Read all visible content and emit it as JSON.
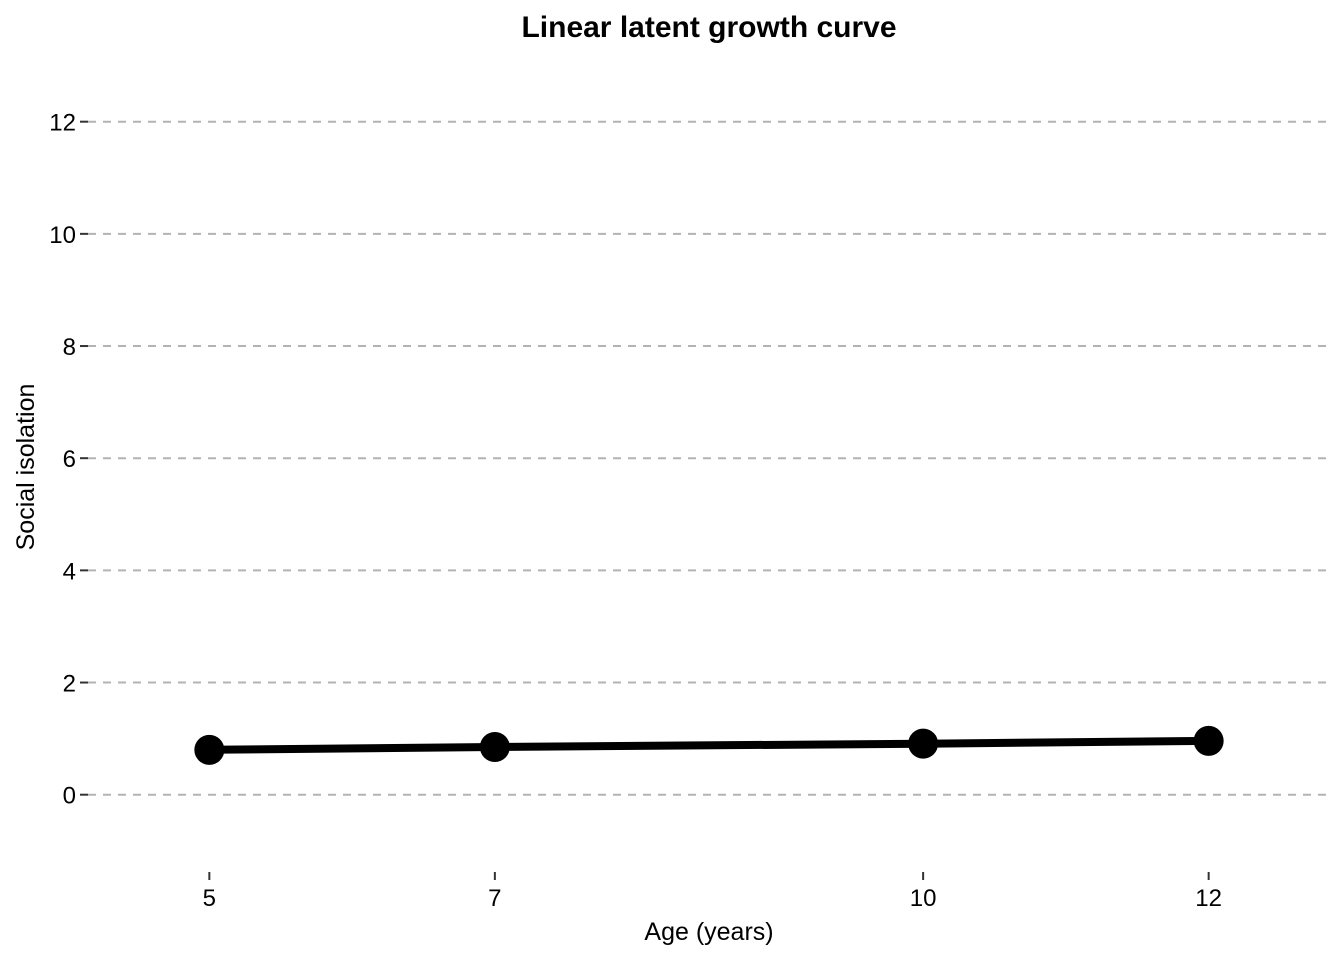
{
  "chart_data": {
    "type": "line",
    "title": "Linear latent growth curve",
    "xlabel": "Age (years)",
    "ylabel": "Social isolation",
    "x": [
      5,
      7,
      10,
      12
    ],
    "x_ticks": [
      "5",
      "7",
      "10",
      "12"
    ],
    "y_ticks": [
      "0",
      "2",
      "4",
      "6",
      "8",
      "10",
      "12"
    ],
    "xlim": [
      4.15,
      12.85
    ],
    "ylim": [
      -1.2,
      13.1
    ],
    "grid": "horizontal-dashed",
    "series": [
      {
        "values": [
          0.8,
          0.85,
          0.91,
          0.96
        ],
        "color": "#000000"
      }
    ]
  }
}
